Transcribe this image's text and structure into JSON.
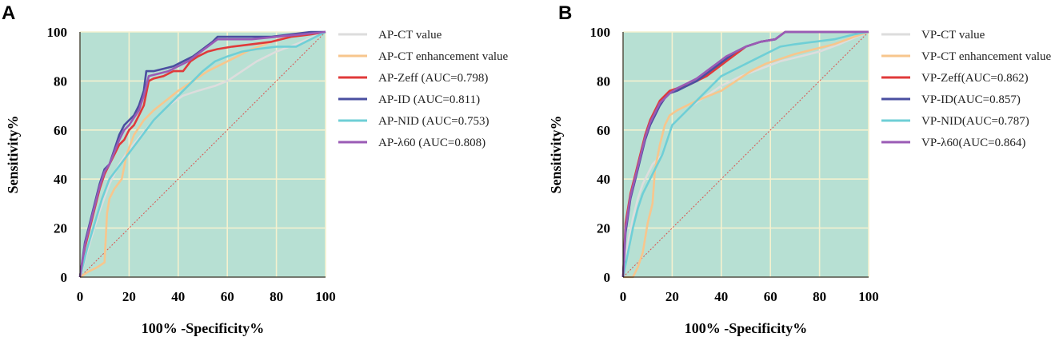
{
  "chart_data": [
    {
      "panel": "A",
      "type": "line",
      "xlabel": "100% -Specificity%",
      "ylabel": "Sensitivity%",
      "xlim": [
        0,
        100
      ],
      "ylim": [
        0,
        100
      ],
      "xticks": [
        "0",
        "20",
        "40",
        "60",
        "80",
        "100"
      ],
      "yticks": [
        "0",
        "20",
        "40",
        "60",
        "80",
        "100"
      ],
      "grid": true,
      "background": "#b7e0d3",
      "grid_color": "#f4f1cf",
      "reference_line_color": "#d9534f",
      "legend_position": "right",
      "series": [
        {
          "name": "AP-CT value",
          "color": "#dddddd",
          "x": [
            0,
            4,
            8,
            12,
            16,
            20,
            25,
            30,
            36,
            42,
            48,
            55,
            60,
            66,
            72,
            80,
            88,
            95,
            100
          ],
          "y": [
            0,
            14,
            27,
            38,
            46,
            52,
            58,
            64,
            70,
            74,
            76,
            78,
            80,
            84,
            88,
            92,
            95,
            98,
            100
          ]
        },
        {
          "name": "AP-CT enhancement value",
          "color": "#f7c68d",
          "x": [
            0,
            3,
            7,
            10,
            11,
            12,
            14,
            17,
            19,
            22,
            26,
            30,
            35,
            40,
            46,
            52,
            58,
            64,
            70,
            78,
            85,
            92,
            100
          ],
          "y": [
            0,
            2,
            4,
            6,
            26,
            32,
            36,
            40,
            50,
            58,
            64,
            68,
            72,
            76,
            80,
            84,
            87,
            90,
            93,
            96,
            98,
            99,
            100
          ]
        },
        {
          "name": "AP-Zeff (AUC=0.798)",
          "color": "#e03a3a",
          "x": [
            0,
            2,
            4,
            6,
            8,
            10,
            12,
            14,
            16,
            18,
            20,
            22,
            24,
            26,
            28,
            30,
            34,
            38,
            42,
            45,
            48,
            52,
            56,
            62,
            70,
            78,
            86,
            94,
            100
          ],
          "y": [
            0,
            12,
            20,
            28,
            36,
            42,
            46,
            50,
            54,
            56,
            60,
            62,
            66,
            70,
            80,
            81,
            82,
            84,
            84,
            88,
            90,
            92,
            93,
            94,
            95,
            96,
            98,
            99,
            100
          ]
        },
        {
          "name": "AP-ID (AUC=0.811)",
          "color": "#4a4fa0",
          "x": [
            0,
            2,
            4,
            6,
            8,
            10,
            12,
            14,
            16,
            18,
            20,
            22,
            24,
            26,
            27,
            30,
            34,
            38,
            42,
            46,
            50,
            54,
            56,
            62,
            70,
            78,
            86,
            94,
            100
          ],
          "y": [
            0,
            14,
            22,
            30,
            38,
            44,
            46,
            52,
            58,
            62,
            64,
            66,
            70,
            76,
            84,
            84,
            85,
            86,
            88,
            90,
            93,
            96,
            98,
            98,
            98,
            98,
            99,
            100,
            100
          ]
        },
        {
          "name": "AP-NID (AUC=0.753)",
          "color": "#6fcfd6",
          "x": [
            0,
            3,
            6,
            9,
            12,
            15,
            18,
            21,
            24,
            27,
            30,
            34,
            38,
            42,
            46,
            50,
            55,
            60,
            66,
            72,
            80,
            88,
            94,
            100
          ],
          "y": [
            0,
            12,
            22,
            32,
            40,
            44,
            48,
            52,
            56,
            60,
            64,
            68,
            72,
            76,
            80,
            84,
            88,
            90,
            92,
            93,
            94,
            94,
            97,
            100
          ]
        },
        {
          "name": "AP-λ60 (AUC=0.808)",
          "color": "#9a5bb5",
          "x": [
            0,
            2,
            4,
            6,
            8,
            10,
            12,
            14,
            16,
            18,
            20,
            22,
            24,
            26,
            28,
            32,
            36,
            40,
            44,
            48,
            52,
            56,
            62,
            70,
            80,
            90,
            100
          ],
          "y": [
            0,
            13,
            21,
            29,
            37,
            43,
            46,
            51,
            56,
            60,
            62,
            65,
            68,
            74,
            82,
            83,
            84,
            86,
            88,
            91,
            94,
            97,
            97,
            97,
            98,
            99,
            100
          ]
        }
      ]
    },
    {
      "panel": "B",
      "type": "line",
      "xlabel": "100% -Specificity%",
      "ylabel": "Sensitivity%",
      "xlim": [
        0,
        100
      ],
      "ylim": [
        0,
        100
      ],
      "xticks": [
        "0",
        "20",
        "40",
        "60",
        "80",
        "100"
      ],
      "yticks": [
        "0",
        "20",
        "40",
        "60",
        "80",
        "100"
      ],
      "grid": true,
      "background": "#b7e0d3",
      "grid_color": "#f4f1cf",
      "reference_line_color": "#d9534f",
      "legend_position": "right",
      "series": [
        {
          "name": "VP-CT value",
          "color": "#dddddd",
          "x": [
            0,
            2,
            4,
            6,
            8,
            10,
            12,
            14,
            16,
            18,
            20,
            24,
            28,
            34,
            40,
            48,
            56,
            64,
            72,
            80,
            88,
            95,
            100
          ],
          "y": [
            0,
            14,
            24,
            32,
            38,
            42,
            46,
            48,
            50,
            56,
            62,
            66,
            70,
            74,
            78,
            82,
            85,
            88,
            90,
            92,
            95,
            98,
            100
          ]
        },
        {
          "name": "VP-CT enhancement value",
          "color": "#f7c68d",
          "x": [
            0,
            4,
            6,
            8,
            10,
            12,
            13,
            15,
            17,
            19,
            22,
            26,
            30,
            35,
            40,
            46,
            52,
            58,
            64,
            70,
            78,
            86,
            94,
            100
          ],
          "y": [
            0,
            0,
            4,
            10,
            22,
            30,
            44,
            54,
            62,
            66,
            68,
            70,
            72,
            74,
            76,
            80,
            84,
            87,
            89,
            91,
            93,
            95,
            98,
            100
          ]
        },
        {
          "name": "VP-Zeff(AUC=0.862)",
          "color": "#e03a3a",
          "x": [
            0,
            1,
            3,
            5,
            7,
            9,
            11,
            13,
            15,
            17,
            19,
            22,
            26,
            30,
            34,
            38,
            42,
            46,
            50,
            56,
            62,
            66,
            70,
            78,
            86,
            100
          ],
          "y": [
            0,
            22,
            34,
            42,
            50,
            58,
            64,
            68,
            72,
            74,
            76,
            77,
            78,
            80,
            82,
            85,
            88,
            91,
            94,
            96,
            97,
            100,
            100,
            100,
            100,
            100
          ]
        },
        {
          "name": "VP-ID(AUC=0.857)",
          "color": "#4a4fa0",
          "x": [
            0,
            1,
            3,
            5,
            7,
            9,
            11,
            13,
            15,
            17,
            19,
            22,
            26,
            30,
            34,
            38,
            42,
            46,
            50,
            56,
            62,
            66,
            70,
            78,
            86,
            100
          ],
          "y": [
            0,
            18,
            32,
            40,
            48,
            56,
            62,
            66,
            70,
            73,
            75,
            76,
            78,
            80,
            83,
            86,
            89,
            92,
            94,
            96,
            97,
            100,
            100,
            100,
            100,
            100
          ]
        },
        {
          "name": "VP-NID(AUC=0.787)",
          "color": "#6fcfd6",
          "x": [
            0,
            2,
            4,
            6,
            8,
            10,
            12,
            14,
            16,
            18,
            20,
            24,
            28,
            32,
            36,
            40,
            44,
            48,
            52,
            56,
            60,
            64,
            70,
            78,
            86,
            94,
            100
          ],
          "y": [
            0,
            10,
            20,
            28,
            34,
            38,
            42,
            46,
            50,
            56,
            62,
            66,
            70,
            74,
            78,
            82,
            84,
            86,
            88,
            90,
            92,
            94,
            95,
            96,
            97,
            99,
            100
          ]
        },
        {
          "name": "VP-λ60(AUC=0.864)",
          "color": "#9a5bb5",
          "x": [
            0,
            1,
            3,
            5,
            7,
            9,
            11,
            13,
            15,
            17,
            19,
            22,
            26,
            30,
            34,
            38,
            42,
            46,
            50,
            56,
            62,
            66,
            70,
            78,
            86,
            100
          ],
          "y": [
            0,
            20,
            33,
            41,
            49,
            57,
            63,
            67,
            71,
            73,
            75,
            77,
            79,
            81,
            84,
            87,
            90,
            92,
            94,
            96,
            97,
            100,
            100,
            100,
            100,
            100
          ]
        }
      ]
    }
  ]
}
